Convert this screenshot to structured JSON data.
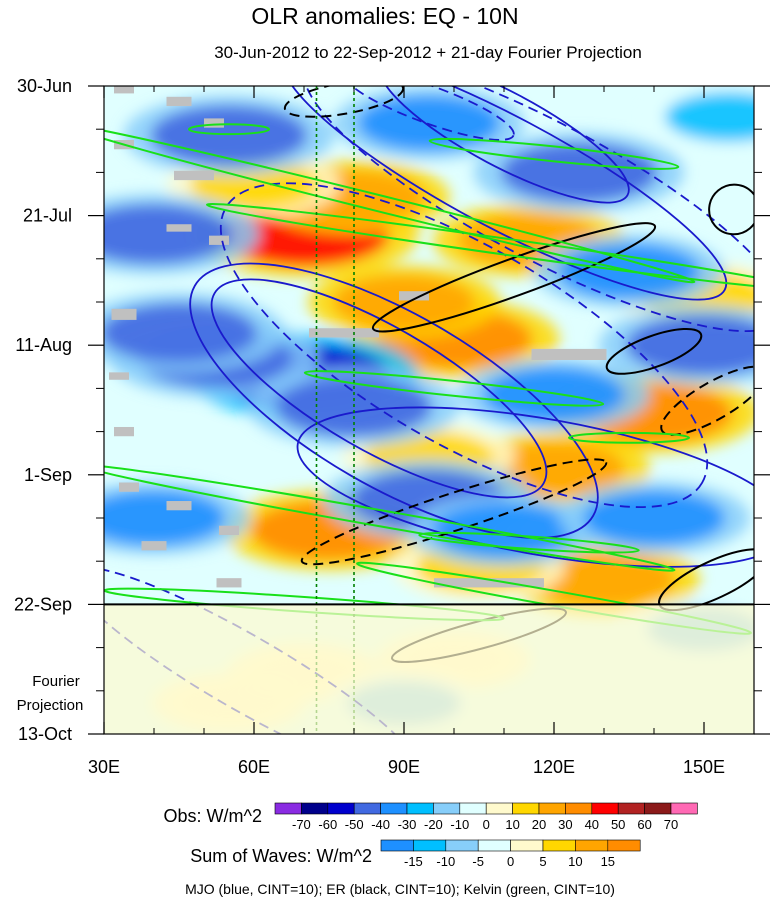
{
  "chart_data": {
    "type": "heatmap",
    "title": "OLR anomalies: EQ - 10N",
    "subtitle": "30-Jun-2012 to 22-Sep-2012 + 21-day Fourier Projection",
    "x_axis": {
      "range_deg": [
        30,
        160
      ],
      "ticks": [
        {
          "value": 30,
          "label": "30E"
        },
        {
          "value": 60,
          "label": "60E"
        },
        {
          "value": 90,
          "label": "90E"
        },
        {
          "value": 120,
          "label": "120E"
        },
        {
          "value": 150,
          "label": "150E"
        }
      ]
    },
    "y_axis": {
      "range_days": [
        0,
        105
      ],
      "ticks": [
        {
          "day": 0,
          "label": "30-Jun"
        },
        {
          "day": 21,
          "label": "21-Jul"
        },
        {
          "day": 42,
          "label": "11-Aug"
        },
        {
          "day": 63,
          "label": "1-Sep"
        },
        {
          "day": 84,
          "label": "22-Sep"
        },
        {
          "day": 105,
          "label": "13-Oct"
        }
      ]
    },
    "projection_start_day": 84,
    "projection_label": [
      "Fourier",
      "Projection"
    ],
    "reference_lines_deg": [
      72.5,
      80
    ],
    "obs_legend": {
      "title": "Obs: W/m^2",
      "labels": [
        "-70",
        "-60",
        "-50",
        "-40",
        "-30",
        "-20",
        "-10",
        "0",
        "10",
        "20",
        "30",
        "40",
        "50",
        "60",
        "70"
      ],
      "colors": [
        "#8a2be2",
        "#00008b",
        "#0000cd",
        "#4169e1",
        "#1e90ff",
        "#00bfff",
        "#87cefa",
        "#e0ffff",
        "#fffacd",
        "#ffd700",
        "#ffa500",
        "#ff8c00",
        "#ff0000",
        "#b22222",
        "#8b1a1a",
        "#ff69b4"
      ]
    },
    "waves_legend": {
      "title": "Sum of Waves: W/m^2",
      "labels": [
        "-15",
        "-10",
        "-5",
        "0",
        "5",
        "10",
        "15"
      ],
      "colors": [
        "#1e90ff",
        "#00bfff",
        "#87cefa",
        "#e0ffff",
        "#fffacd",
        "#ffd700",
        "#ffa500",
        "#ff8c00"
      ]
    },
    "contour_note": "MJO (blue, CINT=10); ER (black, CINT=10); Kelvin (green, CINT=10)",
    "contour_colors": {
      "mjo": "#1a1acc",
      "er": "#000000",
      "kelvin": "#19e019"
    },
    "missing_color": "#c0c0c0",
    "reference_line_color": "#008000",
    "anomaly_blobs": [
      {
        "lon": 70,
        "day": 24,
        "value": 50
      },
      {
        "lon": 100,
        "day": 41,
        "value": 40
      },
      {
        "lon": 80,
        "day": 18,
        "value": 30
      },
      {
        "lon": 90,
        "day": 35,
        "value": 30
      },
      {
        "lon": 60,
        "day": 16,
        "value": 20
      },
      {
        "lon": 115,
        "day": 25,
        "value": 30
      },
      {
        "lon": 140,
        "day": 53,
        "value": 40
      },
      {
        "lon": 75,
        "day": 72,
        "value": 40
      },
      {
        "lon": 120,
        "day": 62,
        "value": 30
      },
      {
        "lon": 95,
        "day": 60,
        "value": 20
      },
      {
        "lon": 150,
        "day": 34,
        "value": 20
      },
      {
        "lon": 130,
        "day": 80,
        "value": 30
      },
      {
        "lon": 105,
        "day": 78,
        "value": 20
      },
      {
        "lon": 70,
        "day": 95,
        "value": 10
      },
      {
        "lon": 55,
        "day": 100,
        "value": 10
      },
      {
        "lon": 100,
        "day": 93,
        "value": 10
      },
      {
        "lon": 70,
        "day": 47,
        "value": -50
      },
      {
        "lon": 52,
        "day": 44,
        "value": -40
      },
      {
        "lon": 80,
        "day": 52,
        "value": -40
      },
      {
        "lon": 95,
        "day": 67,
        "value": -40
      },
      {
        "lon": 40,
        "day": 24,
        "value": -40
      },
      {
        "lon": 45,
        "day": 40,
        "value": -40
      },
      {
        "lon": 55,
        "day": 8,
        "value": -40
      },
      {
        "lon": 125,
        "day": 14,
        "value": -40
      },
      {
        "lon": 150,
        "day": 42,
        "value": -40
      },
      {
        "lon": 135,
        "day": 30,
        "value": -30
      },
      {
        "lon": 120,
        "day": 50,
        "value": -30
      },
      {
        "lon": 110,
        "day": 72,
        "value": -30
      },
      {
        "lon": 140,
        "day": 70,
        "value": -30
      },
      {
        "lon": 95,
        "day": 6,
        "value": -30
      },
      {
        "lon": 40,
        "day": 70,
        "value": -30
      },
      {
        "lon": 155,
        "day": 5,
        "value": -20
      },
      {
        "lon": 150,
        "day": 88,
        "value": -10
      },
      {
        "lon": 90,
        "day": 100,
        "value": -10
      }
    ],
    "missing_cells": [
      {
        "lon": 34,
        "day": 0.6,
        "dlon": 4,
        "dday": 1.2
      },
      {
        "lon": 45,
        "day": 2.5,
        "dlon": 5,
        "dday": 1.5
      },
      {
        "lon": 52,
        "day": 6,
        "dlon": 4,
        "dday": 1.5
      },
      {
        "lon": 34,
        "day": 9.5,
        "dlon": 4,
        "dday": 1.5
      },
      {
        "lon": 48,
        "day": 14.5,
        "dlon": 8,
        "dday": 1.5
      },
      {
        "lon": 45,
        "day": 23,
        "dlon": 5,
        "dday": 1.2
      },
      {
        "lon": 53,
        "day": 25,
        "dlon": 4,
        "dday": 1.5
      },
      {
        "lon": 34,
        "day": 37,
        "dlon": 5,
        "dday": 1.8
      },
      {
        "lon": 78,
        "day": 40,
        "dlon": 14,
        "dday": 1.5
      },
      {
        "lon": 92,
        "day": 34,
        "dlon": 6,
        "dday": 1.5
      },
      {
        "lon": 123,
        "day": 43.5,
        "dlon": 15,
        "dday": 1.8
      },
      {
        "lon": 33,
        "day": 47,
        "dlon": 4,
        "dday": 1.2
      },
      {
        "lon": 34,
        "day": 56,
        "dlon": 4,
        "dday": 1.5
      },
      {
        "lon": 35,
        "day": 65,
        "dlon": 4,
        "dday": 1.5
      },
      {
        "lon": 45,
        "day": 68,
        "dlon": 5,
        "dday": 1.5
      },
      {
        "lon": 55,
        "day": 72,
        "dlon": 4,
        "dday": 1.5
      },
      {
        "lon": 40,
        "day": 74.5,
        "dlon": 5,
        "dday": 1.5
      },
      {
        "lon": 55,
        "day": 80.5,
        "dlon": 5,
        "dday": 1.5
      },
      {
        "lon": 107,
        "day": 80.5,
        "dlon": 22,
        "dday": 1.5
      }
    ],
    "mjo_contours": [
      {
        "lon": 110,
        "day": 7,
        "rlon": 28,
        "rday": 6,
        "rot": 28,
        "dash": false
      },
      {
        "lon": 110,
        "day": 14,
        "rlon": 50,
        "rday": 9,
        "rot": 28,
        "dash": false
      },
      {
        "lon": 118,
        "day": 17,
        "rlon": 54,
        "rday": 11,
        "rot": 28,
        "dash": true
      },
      {
        "lon": 85,
        "day": 49,
        "rlon": 38,
        "rday": 10,
        "rot": 30,
        "dash": false
      },
      {
        "lon": 88,
        "day": 51,
        "rlon": 46,
        "rday": 14,
        "rot": 30,
        "dash": false
      },
      {
        "lon": 102,
        "day": 42,
        "rlon": 55,
        "rday": 16,
        "rot": 30,
        "dash": true
      },
      {
        "lon": 118,
        "day": 65,
        "rlon": 50,
        "rday": 11,
        "rot": 10,
        "dash": false
      },
      {
        "lon": 58,
        "day": 95,
        "rlon": 40,
        "rday": 6,
        "rot": 30,
        "dash": true
      },
      {
        "lon": 95,
        "day": 3,
        "rlon": 18,
        "rday": 3,
        "rot": 20,
        "dash": true
      }
    ],
    "er_contours": [
      {
        "lon": 112,
        "day": 31,
        "rlon": 30,
        "rday": 3,
        "rot": -20,
        "dash": false
      },
      {
        "lon": 100,
        "day": 69,
        "rlon": 32,
        "rday": 3,
        "rot": -18,
        "dash": true
      },
      {
        "lon": 140,
        "day": 43,
        "rlon": 10,
        "rday": 2.5,
        "rot": -20,
        "dash": false
      },
      {
        "lon": 152,
        "day": 51,
        "rlon": 12,
        "rday": 3,
        "rot": -30,
        "dash": true
      },
      {
        "lon": 105,
        "day": 89,
        "rlon": 18,
        "rday": 2.2,
        "rot": -15,
        "dash": false
      },
      {
        "lon": 152,
        "day": 80,
        "rlon": 12,
        "rday": 3,
        "rot": -25,
        "dash": false
      },
      {
        "lon": 78,
        "day": 2,
        "rlon": 12,
        "rday": 2.5,
        "rot": -10,
        "dash": true
      },
      {
        "lon": 156,
        "day": 20,
        "rlon": 5,
        "rday": 4,
        "rot": -40,
        "dash": false
      }
    ],
    "kelvin_contours": [
      {
        "lon": 85,
        "day": 19,
        "rlon": 65,
        "rday": 1.3,
        "rot": 14,
        "dash": false
      },
      {
        "lon": 110,
        "day": 26,
        "rlon": 60,
        "rday": 1.3,
        "rot": 8,
        "dash": false
      },
      {
        "lon": 120,
        "day": 11,
        "rlon": 25,
        "rday": 1.2,
        "rot": 6,
        "dash": false
      },
      {
        "lon": 100,
        "day": 49,
        "rlon": 30,
        "rday": 1.2,
        "rot": 6,
        "dash": false
      },
      {
        "lon": 85,
        "day": 70,
        "rlon": 60,
        "rday": 1.3,
        "rot": 10,
        "dash": false
      },
      {
        "lon": 120,
        "day": 83,
        "rlon": 40,
        "rday": 1.2,
        "rot": 10,
        "dash": false
      },
      {
        "lon": 70,
        "day": 84,
        "rlon": 40,
        "rday": 1.2,
        "rot": 4,
        "dash": false
      },
      {
        "lon": 115,
        "day": 74,
        "rlon": 22,
        "rday": 1.0,
        "rot": 4,
        "dash": false
      },
      {
        "lon": 55,
        "day": 7,
        "rlon": 8,
        "rday": 0.8,
        "rot": 0,
        "dash": false
      },
      {
        "lon": 135,
        "day": 57,
        "rlon": 12,
        "rday": 0.8,
        "rot": 0,
        "dash": false
      }
    ]
  }
}
